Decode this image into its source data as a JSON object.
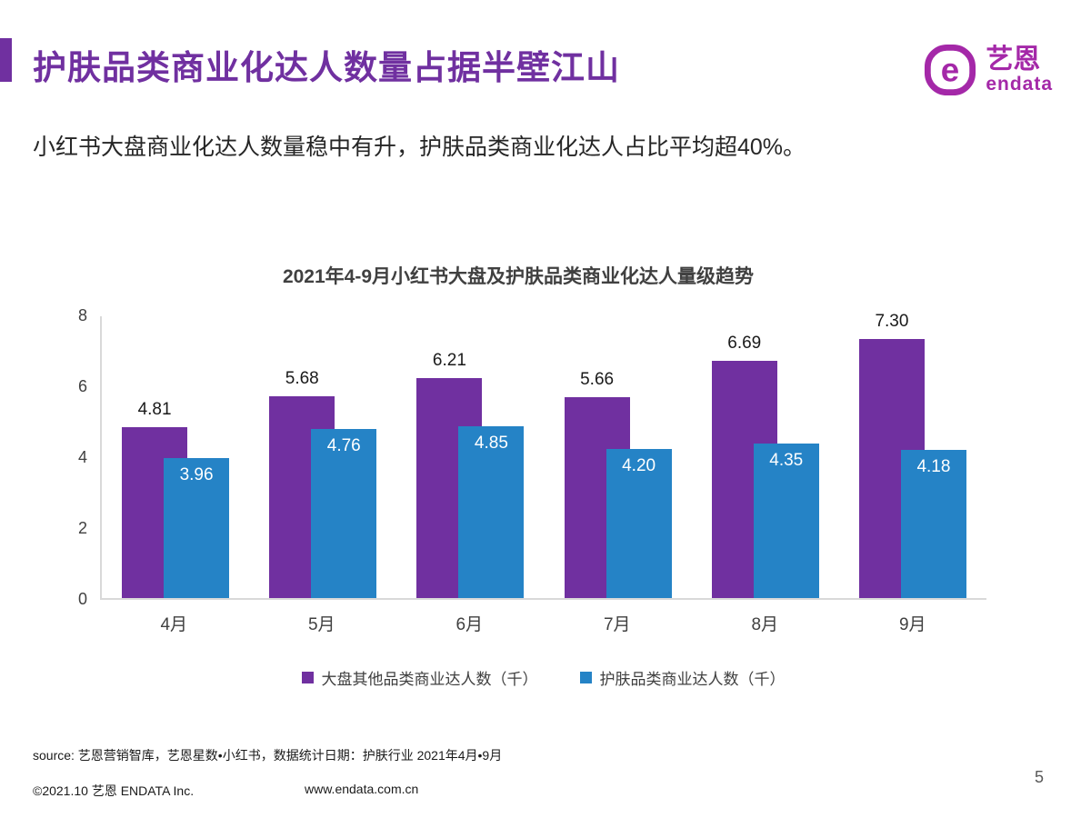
{
  "header": {
    "title": "护肤品类商业化达人数量占据半壁江山",
    "subtitle": "小红书大盘商业化达人数量稳中有升，护肤品类商业化达人占比平均超40%。"
  },
  "logo": {
    "mark": "e",
    "name_cn": "艺恩",
    "name_en": "endata",
    "brand_color": "#A428A8"
  },
  "chart_data": {
    "type": "bar",
    "title": "2021年4-9月小红书大盘及护肤品类商业化达人量级趋势",
    "categories": [
      "4月",
      "5月",
      "6月",
      "7月",
      "8月",
      "9月"
    ],
    "series": [
      {
        "name": "大盘其他品类商业达人数（千）",
        "color": "#7030A0",
        "values": [
          4.81,
          5.68,
          6.21,
          5.66,
          6.69,
          7.3
        ]
      },
      {
        "name": "护肤品类商业达人数（千）",
        "color": "#2583C6",
        "values": [
          3.96,
          4.76,
          4.85,
          4.2,
          4.35,
          4.18
        ]
      }
    ],
    "ylim": [
      0,
      8
    ],
    "yticks": [
      0,
      2,
      4,
      6,
      8
    ],
    "grid": false,
    "legend_position": "bottom",
    "value_label_decimals": 2
  },
  "footer": {
    "source": "source: 艺恩营销智库，艺恩星数•小红书，数据统计日期：护肤行业 2021年4月•9月",
    "copyright": "©2021.10 艺恩 ENDATA Inc.",
    "website": "www.endata.com.cn",
    "page_number": "5"
  }
}
